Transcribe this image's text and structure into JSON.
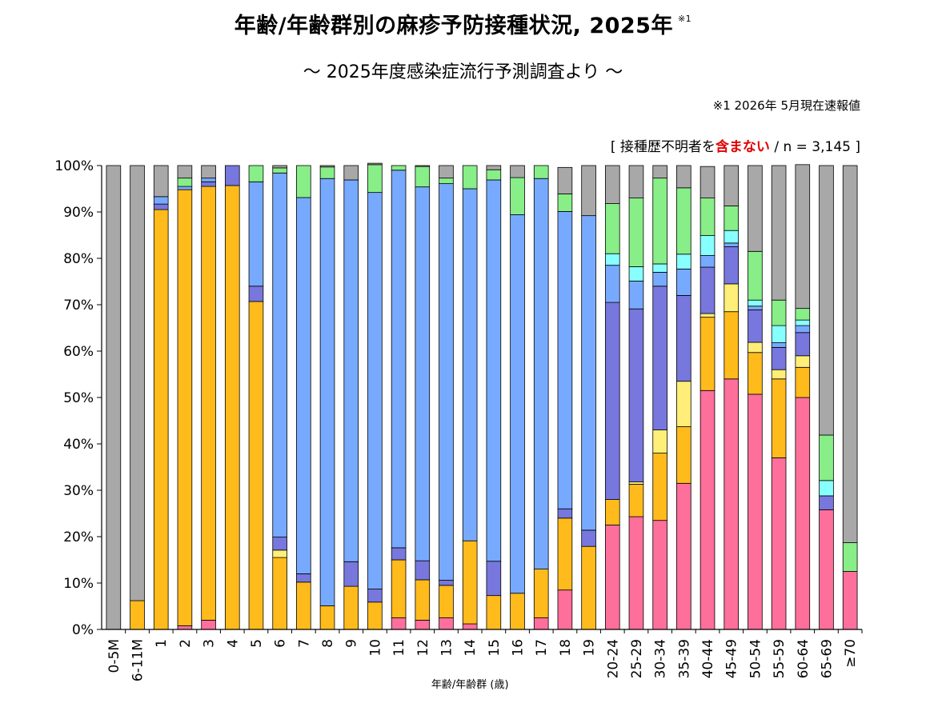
{
  "header": {
    "title": "年齢/年齢群別の麻疹予防接種状況, 2025年",
    "title_note": "※1",
    "subtitle": "～ 2025年度感染症流行予測調査より ～",
    "note": "※1  2026年 5月現在速報値",
    "sample_prefix": "[ 接種歴不明者を",
    "sample_highlight": "含まない",
    "sample_suffix": " / n = 3,145 ]"
  },
  "chart_data": {
    "type": "bar",
    "stacked": true,
    "xlabel": "年齢/年齢群 (歳)",
    "ylabel": "",
    "ylim": [
      0,
      100
    ],
    "yticks": [
      "0%",
      "10%",
      "20%",
      "30%",
      "40%",
      "50%",
      "60%",
      "70%",
      "80%",
      "90%",
      "100%"
    ],
    "grid": false,
    "categories": [
      "0-5M",
      "6-11M",
      "1",
      "2",
      "3",
      "4",
      "5",
      "6",
      "7",
      "8",
      "9",
      "10",
      "11",
      "12",
      "13",
      "14",
      "15",
      "16",
      "17",
      "18",
      "19",
      "20-24",
      "25-29",
      "30-34",
      "35-39",
      "40-44",
      "45-49",
      "50-54",
      "55-59",
      "60-64",
      "65-69",
      "≥70"
    ],
    "colors": [
      "#ff6f9c",
      "#ffbb1c",
      "#ffee77",
      "#7777dd",
      "#77aaff",
      "#88ffff",
      "#88ee88",
      "#a8a8a8"
    ],
    "series": [
      {
        "values": [
          0,
          0,
          0,
          0.8,
          2,
          0,
          0,
          0,
          0,
          0,
          0,
          0,
          2.5,
          2,
          2.5,
          1.2,
          0,
          0,
          2.5,
          8.5,
          0,
          22.5,
          24.3,
          23.5,
          31.5,
          51.5,
          54,
          50.7,
          37,
          50,
          25.8,
          12.5
        ]
      },
      {
        "values": [
          0,
          6.2,
          90.5,
          94,
          93.5,
          95.7,
          70.7,
          15.5,
          10.2,
          5.1,
          9.3,
          5.9,
          12.5,
          8.7,
          7,
          17.9,
          7.3,
          7.8,
          10.5,
          15.5,
          17.9,
          5.5,
          7,
          14.5,
          12.2,
          15.8,
          14.5,
          9,
          17,
          6.5,
          0,
          0
        ]
      },
      {
        "values": [
          0,
          0,
          0,
          0,
          0,
          0,
          0,
          1.6,
          0,
          0,
          0,
          0,
          0,
          0,
          0,
          0,
          0,
          0,
          0,
          0,
          0,
          0,
          0.5,
          5,
          9.8,
          0.8,
          6,
          2.2,
          2,
          2.5,
          0,
          0
        ]
      },
      {
        "values": [
          0,
          0,
          1.2,
          0,
          1,
          4.3,
          3.3,
          2.8,
          1.8,
          0,
          5.3,
          2.8,
          2.6,
          4.1,
          1.1,
          0,
          7.4,
          0,
          0,
          2,
          3.5,
          42.5,
          37.3,
          31,
          18.5,
          10,
          8,
          7,
          4.8,
          5,
          3,
          0
        ]
      },
      {
        "values": [
          0,
          0,
          1.6,
          0.7,
          0.8,
          0,
          22.5,
          78.5,
          81.1,
          92.1,
          82.3,
          85.5,
          81.4,
          80.6,
          85.5,
          75.9,
          82.2,
          81.6,
          84.2,
          64.1,
          67.8,
          8,
          6,
          3,
          5.7,
          2.5,
          0.8,
          0.8,
          1,
          1.5,
          0,
          0
        ]
      },
      {
        "values": [
          0,
          0,
          0,
          0,
          0,
          0,
          0,
          0,
          0,
          0,
          0,
          0,
          0,
          0,
          0,
          0,
          0,
          0,
          0,
          0,
          0,
          2.5,
          3.1,
          1.8,
          3.2,
          4.3,
          2.7,
          1.3,
          3.7,
          1.2,
          3.3,
          0
        ]
      },
      {
        "values": [
          0,
          0,
          0,
          1.8,
          0,
          0,
          3.5,
          1.1,
          6.9,
          2.5,
          0,
          6,
          1,
          4.4,
          1.2,
          5,
          2.2,
          8,
          2.8,
          3.8,
          0,
          10.8,
          14.8,
          18.5,
          14.3,
          8.1,
          5.3,
          10.5,
          5.5,
          2.5,
          9.8,
          6.2
        ]
      },
      {
        "values": [
          100,
          93.8,
          6.7,
          2.7,
          2.7,
          0,
          0,
          0.5,
          0,
          0.3,
          3.1,
          0.3,
          0,
          0.2,
          2.7,
          0,
          0.9,
          2.6,
          0,
          5.7,
          10.8,
          8.2,
          7,
          2.7,
          4.8,
          6.8,
          8.7,
          18.5,
          29,
          31,
          58.1,
          81.3
        ]
      }
    ]
  }
}
